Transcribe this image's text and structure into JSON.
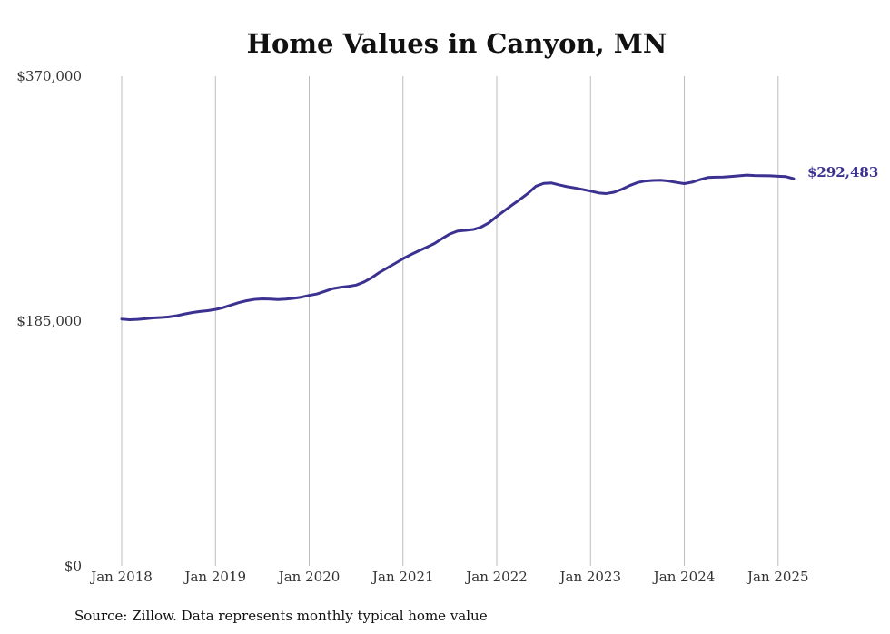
{
  "chart_data": {
    "type": "line",
    "title": "Home Values in Canyon, MN",
    "source": "Source: Zillow. Data represents monthly typical home value",
    "ylim": [
      0,
      370000
    ],
    "yticks": [
      {
        "value": 0,
        "label": "$0"
      },
      {
        "value": 185000,
        "label": "$185,000"
      },
      {
        "value": 370000,
        "label": "$370,000"
      }
    ],
    "xlim": [
      "2018-01",
      "2025-03"
    ],
    "xticks": [
      {
        "date": "2018-01",
        "label": "Jan 2018"
      },
      {
        "date": "2019-01",
        "label": "Jan 2019"
      },
      {
        "date": "2020-01",
        "label": "Jan 2020"
      },
      {
        "date": "2021-01",
        "label": "Jan 2021"
      },
      {
        "date": "2022-01",
        "label": "Jan 2022"
      },
      {
        "date": "2023-01",
        "label": "Jan 2023"
      },
      {
        "date": "2024-01",
        "label": "Jan 2024"
      },
      {
        "date": "2025-01",
        "label": "Jan 2025"
      }
    ],
    "grid": "vertical",
    "end_label": "$292,483",
    "colors": {
      "line": "#3b3190",
      "grid": "#bdbdbd"
    },
    "series": [
      {
        "x": [
          "2018-01",
          "2018-02",
          "2018-03",
          "2018-04",
          "2018-05",
          "2018-06",
          "2018-07",
          "2018-08",
          "2018-09",
          "2018-10",
          "2018-11",
          "2018-12",
          "2019-01",
          "2019-02",
          "2019-03",
          "2019-04",
          "2019-05",
          "2019-06",
          "2019-07",
          "2019-08",
          "2019-09",
          "2019-10",
          "2019-11",
          "2019-12",
          "2020-01",
          "2020-02",
          "2020-03",
          "2020-04",
          "2020-05",
          "2020-06",
          "2020-07",
          "2020-08",
          "2020-09",
          "2020-10",
          "2020-11",
          "2020-12",
          "2021-01",
          "2021-02",
          "2021-03",
          "2021-04",
          "2021-05",
          "2021-06",
          "2021-07",
          "2021-08",
          "2021-09",
          "2021-10",
          "2021-11",
          "2021-12",
          "2022-01",
          "2022-02",
          "2022-03",
          "2022-04",
          "2022-05",
          "2022-06",
          "2022-07",
          "2022-08",
          "2022-09",
          "2022-10",
          "2022-11",
          "2022-12",
          "2023-01",
          "2023-02",
          "2023-03",
          "2023-04",
          "2023-05",
          "2023-06",
          "2023-07",
          "2023-08",
          "2023-09",
          "2023-10",
          "2023-11",
          "2023-12",
          "2024-01",
          "2024-02",
          "2024-03",
          "2024-04",
          "2024-05",
          "2024-06",
          "2024-07",
          "2024-08",
          "2024-09",
          "2024-10",
          "2024-11",
          "2024-12",
          "2025-01",
          "2025-02",
          "2025-03"
        ],
        "values": [
          186500,
          186000,
          186300,
          186800,
          187400,
          187700,
          188200,
          189000,
          190300,
          191400,
          192300,
          192900,
          193800,
          195200,
          197100,
          199000,
          200400,
          201400,
          201800,
          201600,
          201300,
          201600,
          202200,
          203100,
          204400,
          205500,
          207500,
          209500,
          210500,
          211200,
          212200,
          214500,
          217800,
          221800,
          225200,
          228600,
          232100,
          235200,
          238000,
          240700,
          243500,
          247300,
          250800,
          253000,
          253500,
          254200,
          256000,
          259200,
          264000,
          268500,
          272800,
          277000,
          281500,
          286800,
          289000,
          289300,
          287800,
          286500,
          285500,
          284400,
          283200,
          281800,
          281300,
          282300,
          284500,
          287300,
          289600,
          290800,
          291200,
          291400,
          290800,
          289700,
          288800,
          289900,
          291800,
          293400,
          293700,
          293800,
          294200,
          294700,
          295200,
          294900,
          294800,
          294700,
          294400,
          294100,
          292483
        ]
      }
    ]
  }
}
